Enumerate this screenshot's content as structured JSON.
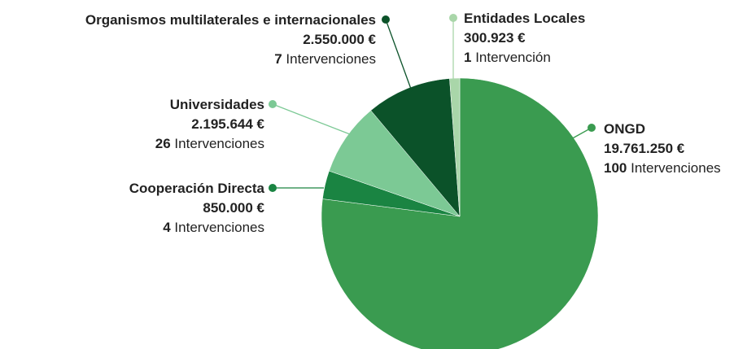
{
  "chart_data": {
    "type": "pie",
    "categories": [
      "ONGD",
      "Cooperación Directa",
      "Universidades",
      "Organismos multilaterales e internacionales",
      "Entidades Locales"
    ],
    "values": [
      19761250,
      850000,
      2195644,
      2550000,
      300923
    ],
    "value_labels": [
      "19.761.250 €",
      "850.000 €",
      "2.195.644 €",
      "2.550.000 €",
      "300.923 €"
    ],
    "interventions": [
      100,
      4,
      26,
      7,
      1
    ],
    "intervention_units": [
      "Intervenciones",
      "Intervenciones",
      "Intervenciones",
      "Intervenciones",
      "Intervención"
    ],
    "colors": [
      "#3a9b50",
      "#1a8442",
      "#7cc995",
      "#0b5229",
      "#a9d6a9"
    ]
  }
}
